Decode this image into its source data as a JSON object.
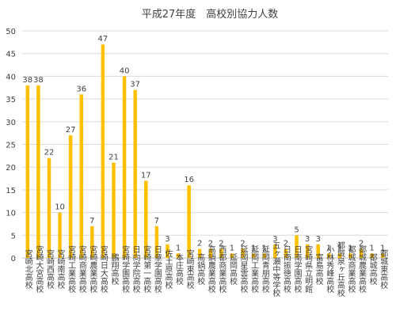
{
  "chart_data": {
    "type": "bar",
    "title": "平成27年度　高校別協力人数",
    "xlabel": "",
    "ylabel": "",
    "ylim": [
      0,
      50
    ],
    "yticks": [
      0,
      5,
      10,
      15,
      20,
      25,
      30,
      35,
      40,
      45,
      50
    ],
    "grid": true,
    "legend": "none",
    "bar_color": "#FFC000",
    "categories": [
      "宮崎北高校",
      "宮崎大宮高校",
      "宮崎西高校",
      "宮崎南高校",
      "宮崎工業高校",
      "宮崎商業高校",
      "宮崎農業高校",
      "宮崎日大高校",
      "鵬翔高校",
      "宮崎学園高校",
      "日向学院高校",
      "宮崎第一高校",
      "日章学園高校",
      "佐土原高校",
      "本庄高校",
      "宮崎東高校",
      "高鍋高校",
      "高鍋農業高校",
      "西都商業高校",
      "延岡高校",
      "延岡星雲高校",
      "延岡工業高校",
      "延岡青朋高校",
      "五ヶ瀬中等学校",
      "日南振徳高校",
      "日南学園高校",
      "宮崎県立明館",
      "富島高校",
      "小林秀峰高校",
      "都城泉ヶ丘高校",
      "都城商業高校",
      "都城農業高校",
      "都城高校",
      "都城東高校"
    ],
    "values": [
      38,
      38,
      22,
      10,
      27,
      36,
      7,
      47,
      21,
      40,
      37,
      17,
      7,
      3,
      1,
      16,
      2,
      2,
      2,
      1,
      2,
      1,
      1,
      3,
      2,
      5,
      3,
      3,
      1,
      1,
      1,
      2,
      1,
      1
    ]
  }
}
